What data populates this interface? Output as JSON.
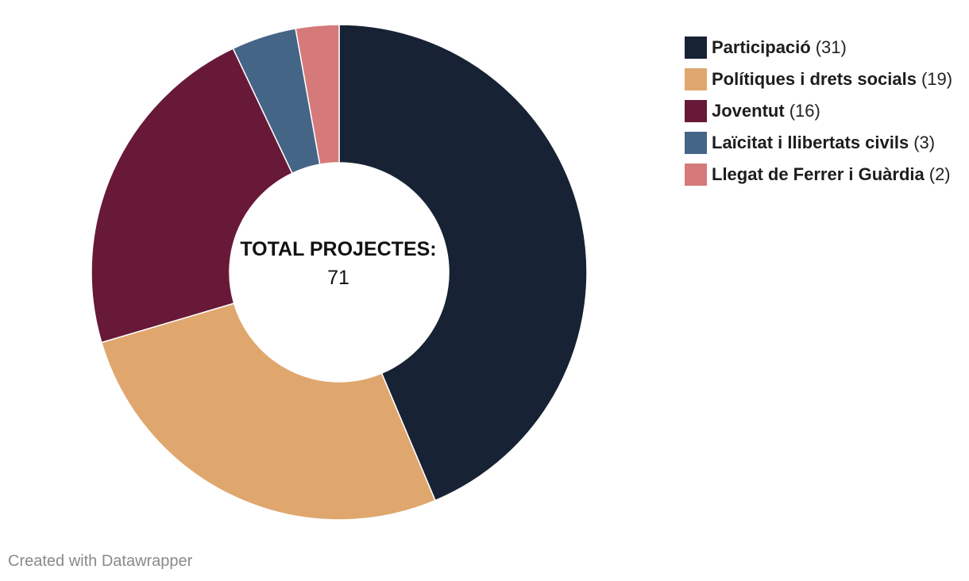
{
  "chart_data": {
    "type": "pie",
    "variant": "donut",
    "categories": [
      "Participació",
      "Polítiques i drets socials",
      "Joventut",
      "Laïcitat i llibertats civils",
      "Llegat de Ferrer i Guàrdia"
    ],
    "values": [
      31,
      19,
      16,
      3,
      2
    ],
    "colors": [
      "#172234",
      "#dfa76e",
      "#681938",
      "#456587",
      "#d6797a"
    ],
    "center_title": "TOTAL PROJECTES:",
    "center_value": "71",
    "legend_position": "top-right"
  },
  "legend": {
    "counts": [
      "(31)",
      "(19)",
      "(16)",
      "(3)",
      "(2)"
    ]
  },
  "credit": "Created with Datawrapper"
}
